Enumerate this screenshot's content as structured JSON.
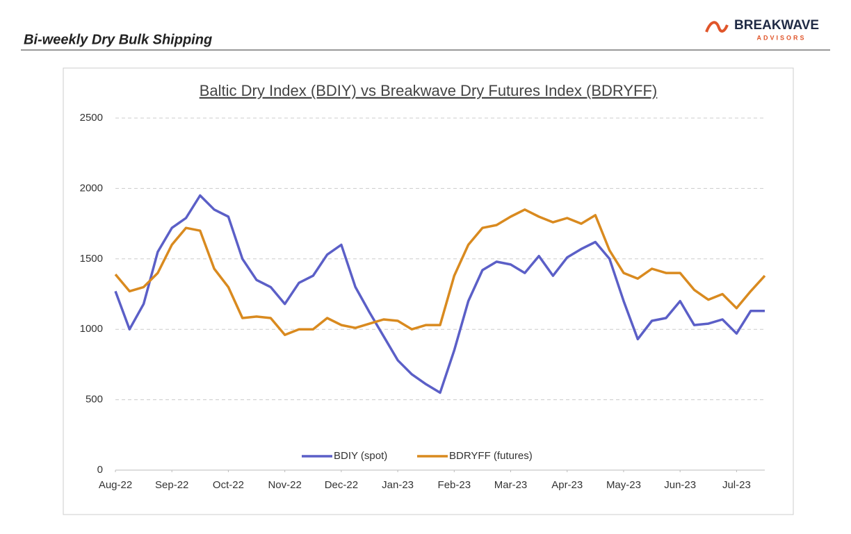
{
  "header": {
    "title": "Bi-weekly Dry Bulk Shipping",
    "logo_name": "BREAKWAVE",
    "logo_sub": "ADVISORS"
  },
  "chart_data": {
    "type": "line",
    "title": "Baltic Dry Index (BDIY) vs Breakwave Dry Futures Index (BDRYFF)",
    "x": [
      0,
      0.25,
      0.5,
      0.75,
      1,
      1.25,
      1.5,
      1.75,
      2,
      2.25,
      2.5,
      2.75,
      3,
      3.25,
      3.5,
      3.75,
      4,
      4.25,
      4.5,
      4.75,
      5,
      5.25,
      5.5,
      5.75,
      6,
      6.25,
      6.5,
      6.75,
      7,
      7.25,
      7.5,
      7.75,
      8,
      8.25,
      8.5,
      8.75,
      9,
      9.25,
      9.5,
      9.75,
      10,
      10.25,
      10.5,
      10.75,
      11,
      11.25,
      11.5
    ],
    "series": [
      {
        "name": "BDIY (spot)",
        "color": "#5b5fc7",
        "values": [
          1270,
          1000,
          1180,
          1550,
          1720,
          1790,
          1950,
          1850,
          1800,
          1500,
          1350,
          1300,
          1180,
          1330,
          1380,
          1530,
          1600,
          1300,
          1120,
          950,
          780,
          680,
          610,
          550,
          850,
          1200,
          1420,
          1480,
          1460,
          1400,
          1520,
          1380,
          1510,
          1570,
          1620,
          1500,
          1200,
          930,
          1060,
          1080,
          1200,
          1030,
          1040,
          1070,
          970,
          1130,
          1130
        ]
      },
      {
        "name": "BDRYFF (futures)",
        "color": "#d98a1f",
        "values": [
          1390,
          1270,
          1300,
          1400,
          1600,
          1720,
          1700,
          1430,
          1300,
          1080,
          1090,
          1080,
          960,
          1000,
          1000,
          1080,
          1030,
          1010,
          1040,
          1070,
          1060,
          1000,
          1030,
          1030,
          1380,
          1600,
          1720,
          1740,
          1800,
          1850,
          1800,
          1760,
          1790,
          1750,
          1810,
          1560,
          1400,
          1360,
          1430,
          1400,
          1400,
          1280,
          1210,
          1250,
          1150,
          1270,
          1380
        ]
      }
    ],
    "xlim": [
      0,
      11.5
    ],
    "xticks": [
      {
        "value": 0,
        "label": "Aug-22"
      },
      {
        "value": 1,
        "label": "Sep-22"
      },
      {
        "value": 2,
        "label": "Oct-22"
      },
      {
        "value": 3,
        "label": "Nov-22"
      },
      {
        "value": 4,
        "label": "Dec-22"
      },
      {
        "value": 5,
        "label": "Jan-23"
      },
      {
        "value": 6,
        "label": "Feb-23"
      },
      {
        "value": 7,
        "label": "Mar-23"
      },
      {
        "value": 8,
        "label": "Apr-23"
      },
      {
        "value": 9,
        "label": "May-23"
      },
      {
        "value": 10,
        "label": "Jun-23"
      },
      {
        "value": 11,
        "label": "Jul-23"
      }
    ],
    "ylim": [
      0,
      2500
    ],
    "yticks": [
      0,
      500,
      1000,
      1500,
      2000,
      2500
    ],
    "grid": true,
    "legend": "bottom"
  }
}
